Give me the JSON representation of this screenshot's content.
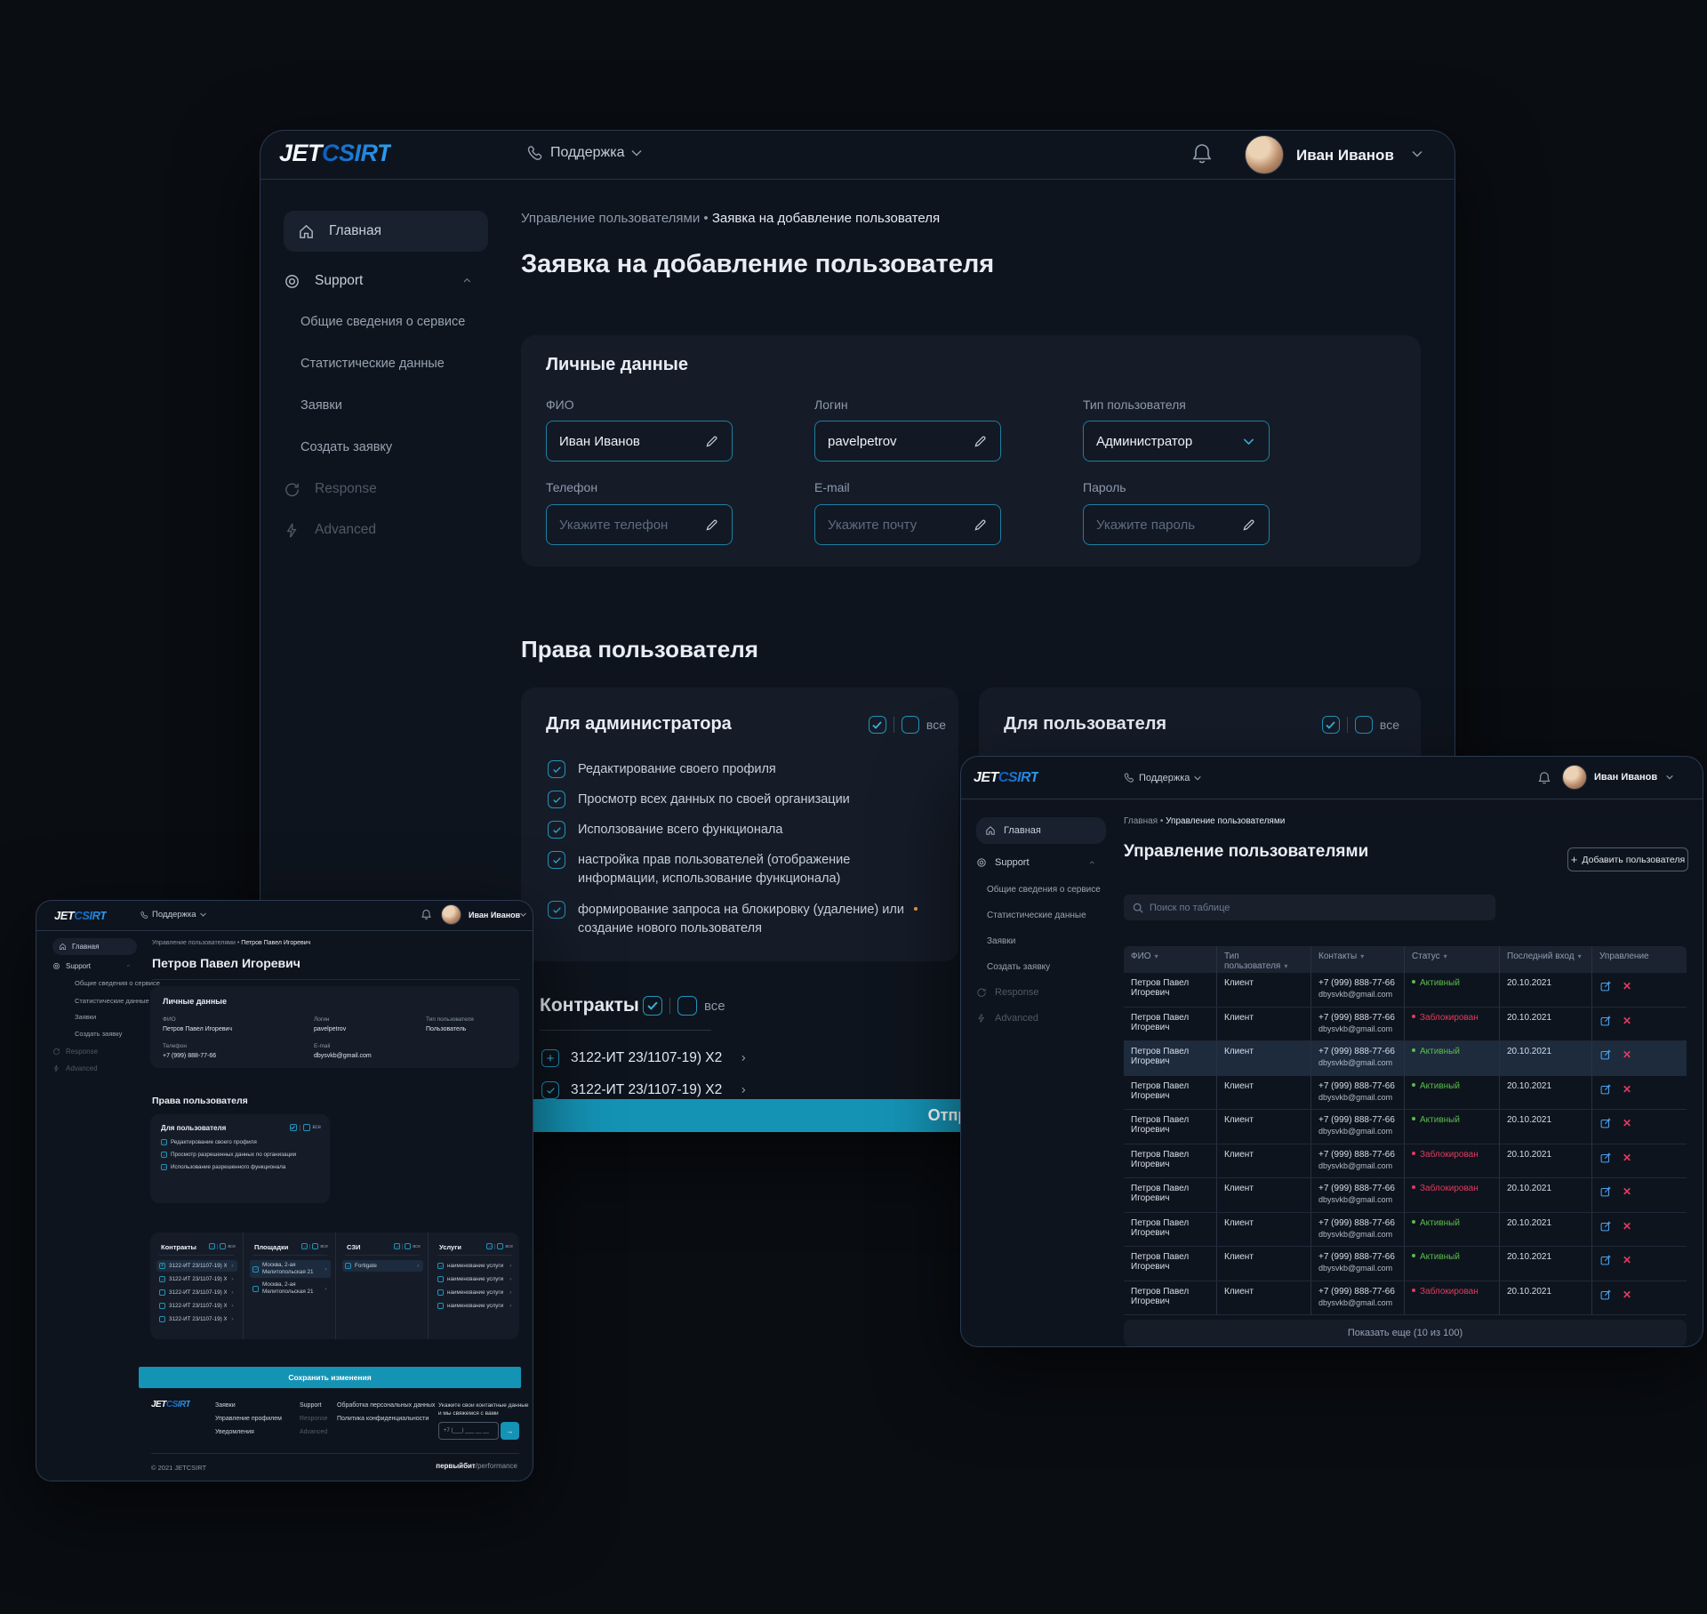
{
  "colors": {
    "accent_teal": "#1593b5",
    "checkbox_teal": "#2193ba",
    "logo_blue": "#2f9ff2",
    "status_active": "#5abc4c",
    "status_blocked": "#e23a5f",
    "edit_icon_blue": "#4aa3f0",
    "notification_dot": "#f59a3c"
  },
  "logo": {
    "jet": "JET",
    "csirt": "CSIRT"
  },
  "user": {
    "name": "Иван Иванов"
  },
  "header": {
    "support": "Поддержка"
  },
  "sidebar": {
    "items": [
      {
        "label": "Главная",
        "icon": "home",
        "state": "active"
      },
      {
        "label": "Support",
        "icon": "support",
        "chevron": true
      },
      {
        "label": "Общие сведения о сервисе",
        "sub": true
      },
      {
        "label": "Статистические данные",
        "sub": true
      },
      {
        "label": "Заявки",
        "sub": true
      },
      {
        "label": "Создать заявку",
        "sub": true
      },
      {
        "label": "Response",
        "icon": "response",
        "dim": true
      },
      {
        "label": "Advanced",
        "icon": "advanced",
        "dim": true
      }
    ]
  },
  "main_window": {
    "breadcrumb": [
      "Управление пользователями",
      "Заявка на добавление пользователя"
    ],
    "title": "Заявка на добавление пользователя",
    "personal": {
      "title": "Личные данные",
      "fields": [
        {
          "label": "ФИО",
          "value": "Иван Иванов",
          "icon": "pencil"
        },
        {
          "label": "Логин",
          "value": "pavelpetrov",
          "icon": "pencil"
        },
        {
          "label": "Тип пользователя",
          "value": "Администратор",
          "icon": "chevron"
        },
        {
          "label": "Телефон",
          "placeholder": "Укажите телефон",
          "icon": "pencil"
        },
        {
          "label": "E-mail",
          "placeholder": "Укажите почту",
          "icon": "pencil"
        },
        {
          "label": "Пароль",
          "placeholder": "Укажите пароль",
          "icon": "pencil"
        }
      ]
    },
    "rights": {
      "title": "Права пользователя",
      "all_label": "все",
      "admin": {
        "title": "Для администратора",
        "items": [
          "Редактирование своего профиля",
          "Просмотр всех данных по своей организации",
          "Исползование всего функционала",
          "настройка прав пользователей (отображение информации, использование функционала)",
          "формирование запроса на блокировку (удаление) или создание нового пользователя"
        ]
      },
      "user_card": {
        "title": "Для пользователя"
      }
    },
    "contracts": {
      "title": "Контракты",
      "all_label": "все",
      "items": [
        {
          "label": "3122-ИТ 23/1107-19) X2",
          "lead": "plus"
        },
        {
          "label": "3122-ИТ 23/1107-19) X2",
          "lead": "checked"
        }
      ]
    },
    "submit_label": "Отправить"
  },
  "right_window": {
    "breadcrumb": [
      "Главная",
      "Управление пользователями"
    ],
    "title": "Управление пользователями",
    "add_button": "Добавить пользователя",
    "search_placeholder": "Поиск по таблице",
    "table": {
      "columns": [
        "ФИО",
        "Тип пользователя",
        "Контакты",
        "Статус",
        "Последний вход",
        "Управление"
      ],
      "status_labels": {
        "active": "Активный",
        "blocked": "Заблокирован"
      },
      "selected_row": 2,
      "rows": [
        {
          "name": "Петров Павел Игоревич",
          "type": "Клиент",
          "phone": "+7 (999) 888-77-66",
          "email": "dbysvkb@gmail.com",
          "status": "active",
          "date": "20.10.2021"
        },
        {
          "name": "Петров Павел Игоревич",
          "type": "Клиент",
          "phone": "+7 (999) 888-77-66",
          "email": "dbysvkb@gmail.com",
          "status": "blocked",
          "date": "20.10.2021"
        },
        {
          "name": "Петров Павел Игоревич",
          "type": "Клиент",
          "phone": "+7 (999) 888-77-66",
          "email": "dbysvkb@gmail.com",
          "status": "active",
          "date": "20.10.2021"
        },
        {
          "name": "Петров Павел Игоревич",
          "type": "Клиент",
          "phone": "+7 (999) 888-77-66",
          "email": "dbysvkb@gmail.com",
          "status": "active",
          "date": "20.10.2021"
        },
        {
          "name": "Петров Павел Игоревич",
          "type": "Клиент",
          "phone": "+7 (999) 888-77-66",
          "email": "dbysvkb@gmail.com",
          "status": "active",
          "date": "20.10.2021"
        },
        {
          "name": "Петров Павел Игоревич",
          "type": "Клиент",
          "phone": "+7 (999) 888-77-66",
          "email": "dbysvkb@gmail.com",
          "status": "blocked",
          "date": "20.10.2021"
        },
        {
          "name": "Петров Павел Игоревич",
          "type": "Клиент",
          "phone": "+7 (999) 888-77-66",
          "email": "dbysvkb@gmail.com",
          "status": "blocked",
          "date": "20.10.2021"
        },
        {
          "name": "Петров Павел Игоревич",
          "type": "Клиент",
          "phone": "+7 (999) 888-77-66",
          "email": "dbysvkb@gmail.com",
          "status": "active",
          "date": "20.10.2021"
        },
        {
          "name": "Петров Павел Игоревич",
          "type": "Клиент",
          "phone": "+7 (999) 888-77-66",
          "email": "dbysvkb@gmail.com",
          "status": "active",
          "date": "20.10.2021"
        },
        {
          "name": "Петров Павел Игоревич",
          "type": "Клиент",
          "phone": "+7 (999) 888-77-66",
          "email": "dbysvkb@gmail.com",
          "status": "blocked",
          "date": "20.10.2021"
        }
      ],
      "show_more": "Показать еще (10 из 100)"
    }
  },
  "left_window": {
    "breadcrumb": [
      "Управление пользователями",
      "Петров Павел Игоревич"
    ],
    "title": "Петров Павел Игоревич",
    "personal": {
      "title": "Личные данные",
      "fields": [
        {
          "label": "ФИО",
          "value": "Петров Павел Игоревич"
        },
        {
          "label": "Логин",
          "value": "pavelpetrov"
        },
        {
          "label": "Тип пользователя",
          "value": "Пользователь"
        },
        {
          "label": "Телефон",
          "value": "+7 (999) 888-77-66"
        },
        {
          "label": "E-mail",
          "value": "dbysvkb@gmail.com"
        }
      ]
    },
    "rights": {
      "title": "Права пользователя",
      "all_label": "все",
      "card_title": "Для пользователя",
      "items": [
        "Редактирование своего профиля",
        "Просмотр разрешенных данных по организации",
        "Использование разрешенного функционала"
      ]
    },
    "columns": [
      {
        "title": "Контракты",
        "items": [
          {
            "label": "3122-ИТ 23/1107-19) X2",
            "lead": "plus",
            "hl": true
          },
          {
            "label": "3122-ИТ 23/1107-19) X2",
            "lead": "checked"
          },
          {
            "label": "3122-ИТ 23/1107-19) X2",
            "lead": "unchecked"
          },
          {
            "label": "3122-ИТ 23/1107-19) X2",
            "lead": "unchecked"
          },
          {
            "label": "3122-ИТ 23/1107-19) X2",
            "lead": "unchecked"
          }
        ]
      },
      {
        "title": "Площадки",
        "items": [
          {
            "label": "Москва, 2-ая Мелитопольская 21",
            "lead": "checked",
            "hl": true,
            "twoline": true
          },
          {
            "label": "Москва, 2-ая Мелитопольская 21",
            "lead": "unchecked",
            "twoline": true
          }
        ]
      },
      {
        "title": "СЗИ",
        "items": [
          {
            "label": "Fortigate",
            "lead": "checked",
            "hl": true
          }
        ]
      },
      {
        "title": "Услуги",
        "items": [
          {
            "label": "наименование услуги",
            "lead": "checked"
          },
          {
            "label": "наименование услуги",
            "lead": "unchecked"
          },
          {
            "label": "наименование услуги",
            "lead": "unchecked"
          },
          {
            "label": "наименование услуги",
            "lead": "unchecked"
          }
        ]
      }
    ],
    "save_label": "Сохранить изменения",
    "footer": {
      "link_cols": [
        {
          "links": [
            {
              "t": "Заявки"
            },
            {
              "t": "Управление профилем"
            },
            {
              "t": "Уведомления"
            }
          ]
        },
        {
          "links": [
            {
              "t": "Support"
            },
            {
              "t": "Response",
              "dim": true
            },
            {
              "t": "Advanced",
              "dim": true
            }
          ]
        },
        {
          "links": [
            {
              "t": "Обработка персональных данных"
            },
            {
              "t": "Политика конфиденциальности"
            }
          ]
        }
      ],
      "contact_caption": [
        "Укажите свои контактные данные",
        "и мы свяжемся с вами"
      ],
      "phone_placeholder": "+7 (___) ___ __ __",
      "copyright": "© 2021 JETCSIRT",
      "brand_bold": "первыйбит",
      "brand_rest": "/performance"
    }
  }
}
